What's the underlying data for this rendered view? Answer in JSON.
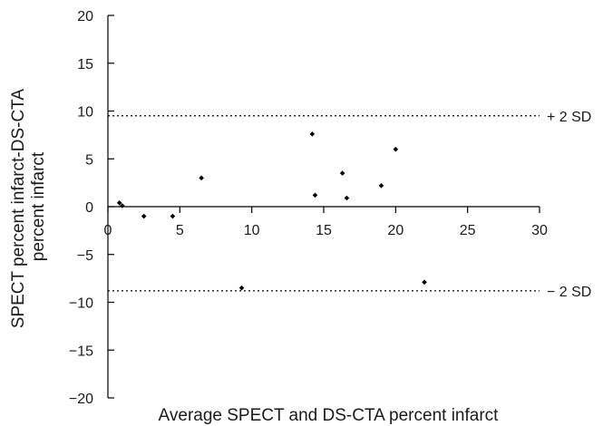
{
  "chart_data": {
    "type": "scatter",
    "title": "",
    "xlabel": "Average SPECT and DS-CTA percent infarct",
    "ylabel": [
      "SPECT percent infarct-DS-CTA",
      "percent infarct"
    ],
    "xlim": [
      0,
      30
    ],
    "ylim": [
      -20,
      20
    ],
    "x_ticks": [
      0,
      5,
      10,
      15,
      20,
      25,
      30
    ],
    "y_ticks": [
      20,
      15,
      10,
      5,
      0,
      -5,
      -10,
      -15,
      -20
    ],
    "x_tick_labels": [
      "0",
      "5",
      "10",
      "15",
      "20",
      "25",
      "30"
    ],
    "y_tick_labels": [
      "20",
      "15",
      "10",
      "5",
      "0",
      "−5",
      "−10",
      "−15",
      "−20"
    ],
    "grid": false,
    "x_axis_at_y": 0,
    "reference_lines": [
      {
        "label": "+ 2 SD",
        "y": 9.5,
        "style": "dotted"
      },
      {
        "label": "− 2 SD",
        "y": -8.8,
        "style": "dotted"
      }
    ],
    "series": [
      {
        "marker": "diamond",
        "color": "#000000",
        "points": [
          {
            "x": 0.8,
            "y": 0.4
          },
          {
            "x": 1.0,
            "y": 0.1
          },
          {
            "x": 2.5,
            "y": -1.0
          },
          {
            "x": 4.5,
            "y": -1.0
          },
          {
            "x": 6.5,
            "y": 3.0
          },
          {
            "x": 9.3,
            "y": -8.5
          },
          {
            "x": 14.2,
            "y": 7.6
          },
          {
            "x": 14.4,
            "y": 1.2
          },
          {
            "x": 16.3,
            "y": 3.5
          },
          {
            "x": 16.6,
            "y": 0.9
          },
          {
            "x": 19.0,
            "y": 2.2
          },
          {
            "x": 20.0,
            "y": 6.0
          },
          {
            "x": 22.0,
            "y": -7.9
          }
        ]
      }
    ]
  }
}
